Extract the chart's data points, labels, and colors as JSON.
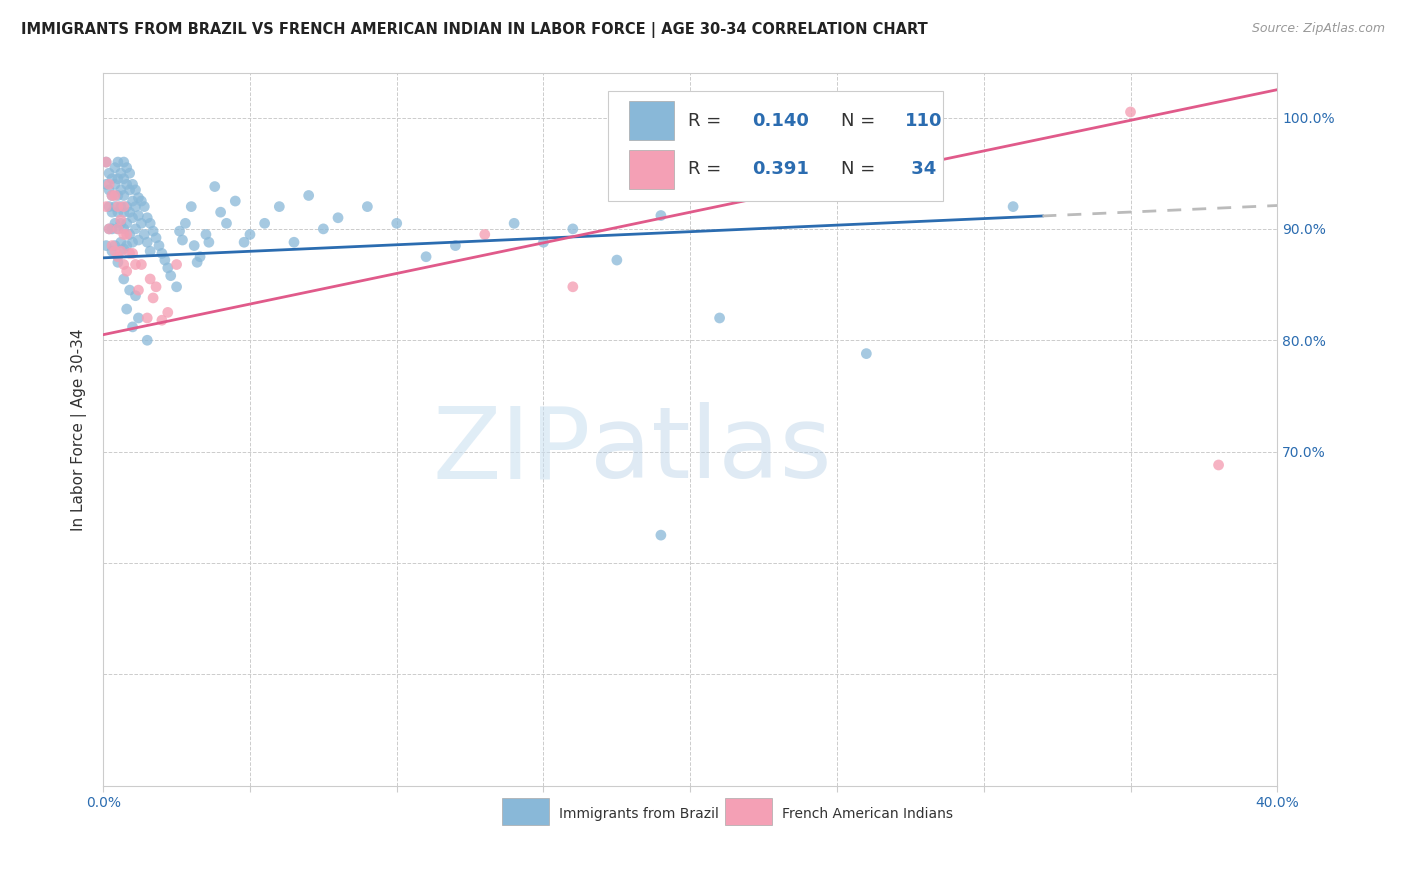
{
  "title": "IMMIGRANTS FROM BRAZIL VS FRENCH AMERICAN INDIAN IN LABOR FORCE | AGE 30-34 CORRELATION CHART",
  "source": "Source: ZipAtlas.com",
  "ylabel": "In Labor Force | Age 30-34",
  "blue_R": 0.14,
  "blue_N": 110,
  "pink_R": 0.391,
  "pink_N": 34,
  "blue_color": "#89b8d8",
  "pink_color": "#f4a0b5",
  "blue_line_color": "#2b6cb0",
  "pink_line_color": "#e05a8a",
  "dashed_line_color": "#bbbbbb",
  "legend_label_blue": "Immigrants from Brazil",
  "legend_label_pink": "French American Indians",
  "x_min": 0.0,
  "x_max": 0.4,
  "y_min": 0.4,
  "y_max": 1.04,
  "x_ticks": [
    0.0,
    0.05,
    0.1,
    0.15,
    0.2,
    0.25,
    0.3,
    0.35,
    0.4
  ],
  "y_ticks": [
    0.4,
    0.5,
    0.6,
    0.7,
    0.8,
    0.9,
    1.0
  ],
  "right_y_labels": {
    "0.40": "",
    "0.50": "",
    "0.60": "",
    "0.70": "70.0%",
    "0.80": "80.0%",
    "0.90": "90.0%",
    "1.00": "100.0%"
  },
  "watermark_zip": "ZIP",
  "watermark_atlas": "atlas",
  "blue_line_solid_end": 0.32,
  "blue_line_y0": 0.874,
  "blue_line_y1": 0.921,
  "pink_line_y0": 0.805,
  "pink_line_y1": 1.025,
  "blue_scatter_x": [
    0.001,
    0.001,
    0.001,
    0.002,
    0.002,
    0.002,
    0.002,
    0.003,
    0.003,
    0.003,
    0.003,
    0.003,
    0.004,
    0.004,
    0.004,
    0.004,
    0.004,
    0.005,
    0.005,
    0.005,
    0.005,
    0.005,
    0.005,
    0.006,
    0.006,
    0.006,
    0.006,
    0.006,
    0.007,
    0.007,
    0.007,
    0.007,
    0.007,
    0.007,
    0.008,
    0.008,
    0.008,
    0.008,
    0.008,
    0.009,
    0.009,
    0.009,
    0.009,
    0.01,
    0.01,
    0.01,
    0.01,
    0.011,
    0.011,
    0.011,
    0.012,
    0.012,
    0.012,
    0.013,
    0.013,
    0.014,
    0.014,
    0.015,
    0.015,
    0.016,
    0.016,
    0.017,
    0.018,
    0.019,
    0.02,
    0.021,
    0.022,
    0.023,
    0.025,
    0.026,
    0.027,
    0.028,
    0.03,
    0.031,
    0.032,
    0.033,
    0.035,
    0.036,
    0.038,
    0.04,
    0.042,
    0.045,
    0.048,
    0.05,
    0.055,
    0.06,
    0.065,
    0.07,
    0.075,
    0.08,
    0.09,
    0.1,
    0.11,
    0.12,
    0.14,
    0.15,
    0.16,
    0.175,
    0.19,
    0.21,
    0.26,
    0.31,
    0.007,
    0.008,
    0.009,
    0.01,
    0.011,
    0.012,
    0.015,
    0.19
  ],
  "blue_scatter_y": [
    0.96,
    0.94,
    0.885,
    0.95,
    0.935,
    0.92,
    0.9,
    0.945,
    0.93,
    0.915,
    0.9,
    0.88,
    0.955,
    0.94,
    0.92,
    0.905,
    0.885,
    0.96,
    0.945,
    0.93,
    0.915,
    0.9,
    0.87,
    0.95,
    0.935,
    0.92,
    0.905,
    0.888,
    0.96,
    0.945,
    0.93,
    0.915,
    0.9,
    0.882,
    0.955,
    0.94,
    0.92,
    0.905,
    0.885,
    0.95,
    0.935,
    0.915,
    0.895,
    0.94,
    0.925,
    0.91,
    0.888,
    0.935,
    0.92,
    0.9,
    0.928,
    0.912,
    0.89,
    0.925,
    0.905,
    0.92,
    0.895,
    0.91,
    0.888,
    0.905,
    0.88,
    0.898,
    0.892,
    0.885,
    0.878,
    0.872,
    0.865,
    0.858,
    0.848,
    0.898,
    0.89,
    0.905,
    0.92,
    0.885,
    0.87,
    0.875,
    0.895,
    0.888,
    0.938,
    0.915,
    0.905,
    0.925,
    0.888,
    0.895,
    0.905,
    0.92,
    0.888,
    0.93,
    0.9,
    0.91,
    0.92,
    0.905,
    0.875,
    0.885,
    0.905,
    0.888,
    0.9,
    0.872,
    0.912,
    0.82,
    0.788,
    0.92,
    0.855,
    0.828,
    0.845,
    0.812,
    0.84,
    0.82,
    0.8,
    0.625
  ],
  "pink_scatter_x": [
    0.001,
    0.001,
    0.002,
    0.002,
    0.003,
    0.003,
    0.004,
    0.004,
    0.005,
    0.005,
    0.005,
    0.006,
    0.006,
    0.007,
    0.007,
    0.007,
    0.008,
    0.008,
    0.009,
    0.01,
    0.011,
    0.012,
    0.013,
    0.015,
    0.016,
    0.017,
    0.018,
    0.02,
    0.022,
    0.025,
    0.13,
    0.16,
    0.35,
    0.38
  ],
  "pink_scatter_y": [
    0.96,
    0.92,
    0.94,
    0.9,
    0.93,
    0.885,
    0.93,
    0.88,
    0.92,
    0.9,
    0.875,
    0.908,
    0.88,
    0.92,
    0.895,
    0.868,
    0.895,
    0.862,
    0.878,
    0.878,
    0.868,
    0.845,
    0.868,
    0.82,
    0.855,
    0.838,
    0.848,
    0.818,
    0.825,
    0.868,
    0.895,
    0.848,
    1.005,
    0.688
  ]
}
